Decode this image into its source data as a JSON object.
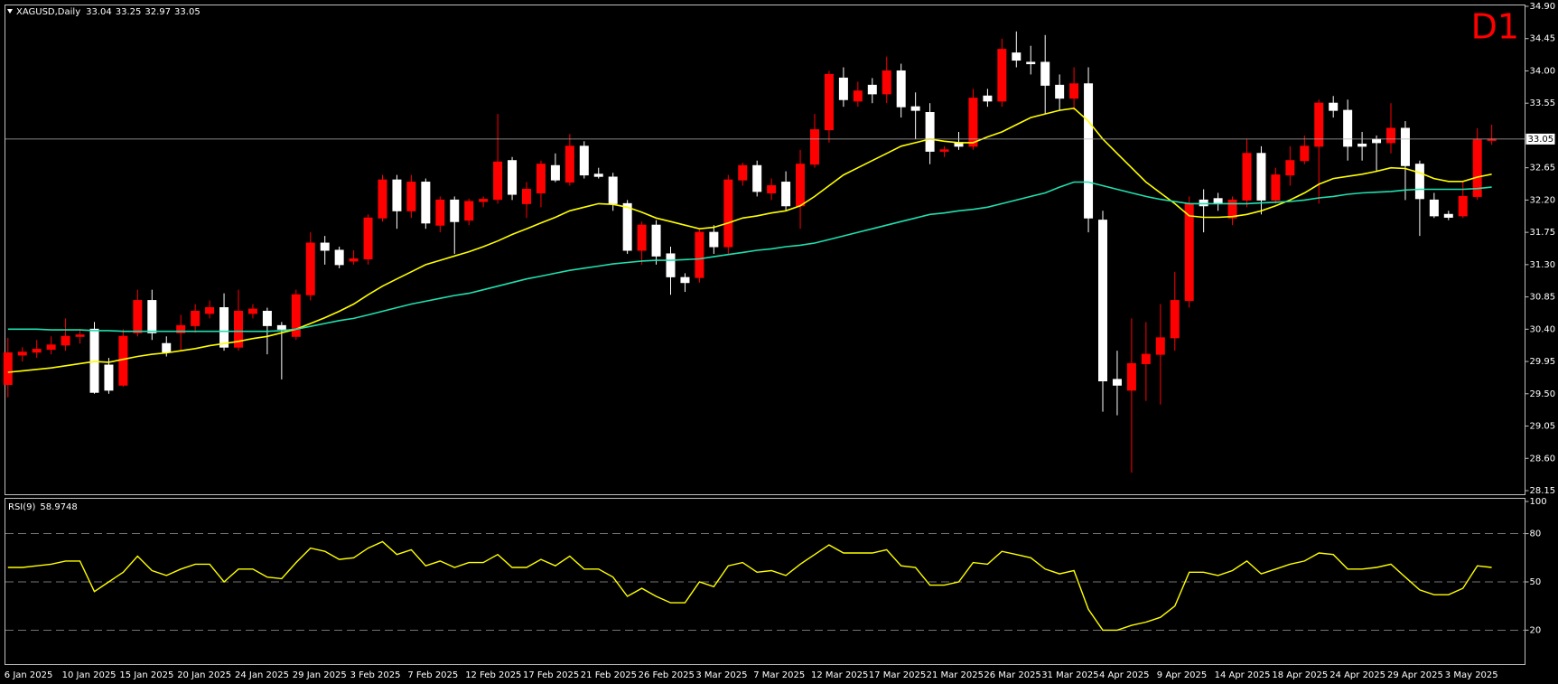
{
  "chart_data": [
    {
      "type": "candlestick",
      "title": "XAGUSD,Daily",
      "last_ohlc": [
        33.04,
        33.25,
        32.97,
        33.05
      ],
      "annotation": "D1",
      "up_color": "#ff0000",
      "down_color": "#ffffff",
      "current_price": 33.05,
      "grid": false,
      "ylim": [
        28.15,
        34.9
      ],
      "yticks": [
        {
          "value": 34.9,
          "label": "34.90"
        },
        34.45,
        {
          "value": 34.0,
          "label": "34.00"
        },
        33.55,
        32.65,
        {
          "value": 32.2,
          "label": "32.20"
        },
        31.75,
        {
          "value": 31.3,
          "label": "31.30"
        },
        30.85,
        {
          "value": 30.4,
          "label": "30.40"
        },
        29.95,
        {
          "value": 29.5,
          "label": "29.50"
        },
        29.05,
        {
          "value": 28.6,
          "label": "28.60"
        },
        28.15
      ],
      "open": [
        29.63,
        30.04,
        30.08,
        30.12,
        30.18,
        30.3,
        30.4,
        29.9,
        29.62,
        30.35,
        30.8,
        30.2,
        30.35,
        30.45,
        30.62,
        30.7,
        30.15,
        30.62,
        30.65,
        30.45,
        30.3,
        30.88,
        31.6,
        31.5,
        31.35,
        31.38,
        31.95,
        32.48,
        32.05,
        32.45,
        31.85,
        32.2,
        31.92,
        32.18,
        32.21,
        32.75,
        32.15,
        32.3,
        32.68,
        32.45,
        32.95,
        32.56,
        32.52,
        32.15,
        31.5,
        31.85,
        31.45,
        31.12,
        31.12,
        31.75,
        31.55,
        32.48,
        32.68,
        32.3,
        32.45,
        32.12,
        32.7,
        33.18,
        33.9,
        33.58,
        33.8,
        33.68,
        34.0,
        33.5,
        33.42,
        32.88,
        33.0,
        32.95,
        33.65,
        33.58,
        34.25,
        34.12,
        34.12,
        33.8,
        33.62,
        33.82,
        31.92,
        29.7,
        29.55,
        29.92,
        30.05,
        30.28,
        30.8,
        32.2,
        32.22,
        31.95,
        32.2,
        32.85,
        32.2,
        32.55,
        32.75,
        32.95,
        33.55,
        33.45,
        32.98,
        33.05,
        33.0,
        33.2,
        32.7,
        32.2,
        32.0,
        31.98,
        32.25,
        33.04
      ],
      "high": [
        30.28,
        30.15,
        30.25,
        30.3,
        30.55,
        30.4,
        30.5,
        30.0,
        30.4,
        30.95,
        30.95,
        30.3,
        30.6,
        30.75,
        30.8,
        30.9,
        30.95,
        30.75,
        30.7,
        30.5,
        30.95,
        31.75,
        31.7,
        31.55,
        31.5,
        32.0,
        32.55,
        32.55,
        32.55,
        32.5,
        32.25,
        32.25,
        32.22,
        32.25,
        33.4,
        32.8,
        32.45,
        32.75,
        32.85,
        33.12,
        33.02,
        32.65,
        32.58,
        32.2,
        31.9,
        31.92,
        31.55,
        31.18,
        31.8,
        31.85,
        32.55,
        32.72,
        32.75,
        32.5,
        32.6,
        32.9,
        33.4,
        34.0,
        34.05,
        33.85,
        33.9,
        34.2,
        34.1,
        33.7,
        33.55,
        32.95,
        33.15,
        33.75,
        33.75,
        34.45,
        34.55,
        34.35,
        34.5,
        33.95,
        34.05,
        34.05,
        32.05,
        30.1,
        30.55,
        30.5,
        30.75,
        31.2,
        32.25,
        32.35,
        32.3,
        32.25,
        33.05,
        32.95,
        32.65,
        32.95,
        33.1,
        33.6,
        33.65,
        33.6,
        33.15,
        33.1,
        33.55,
        33.3,
        32.75,
        32.3,
        32.05,
        32.45,
        33.2,
        33.25
      ],
      "low": [
        29.45,
        29.95,
        30.0,
        30.05,
        30.1,
        30.2,
        29.5,
        29.5,
        29.6,
        30.3,
        30.25,
        30.02,
        30.1,
        30.35,
        30.55,
        30.1,
        30.1,
        30.55,
        30.05,
        29.7,
        30.25,
        30.8,
        31.3,
        31.25,
        31.3,
        31.3,
        31.9,
        31.8,
        31.95,
        31.8,
        31.75,
        31.45,
        31.85,
        32.1,
        32.15,
        32.2,
        31.95,
        32.1,
        32.45,
        32.4,
        32.5,
        32.5,
        32.05,
        31.45,
        31.3,
        31.3,
        30.88,
        30.92,
        31.05,
        31.45,
        31.45,
        32.4,
        32.25,
        32.2,
        32.05,
        31.8,
        32.65,
        33.0,
        33.5,
        33.5,
        33.55,
        33.55,
        33.35,
        33.05,
        32.7,
        32.8,
        32.9,
        32.9,
        33.5,
        33.5,
        34.05,
        33.95,
        33.4,
        33.45,
        33.45,
        31.75,
        29.25,
        29.2,
        28.4,
        29.4,
        29.35,
        30.1,
        30.7,
        31.75,
        32.05,
        31.85,
        32.1,
        32.0,
        32.15,
        32.4,
        32.7,
        32.15,
        33.35,
        32.75,
        32.75,
        32.6,
        32.85,
        32.2,
        31.7,
        31.95,
        31.92,
        31.95,
        32.2,
        32.97
      ],
      "close": [
        30.07,
        30.08,
        30.12,
        30.18,
        30.3,
        30.32,
        29.52,
        29.55,
        30.3,
        30.8,
        30.35,
        30.08,
        30.45,
        30.65,
        30.7,
        30.15,
        30.65,
        30.68,
        30.45,
        30.4,
        30.88,
        31.6,
        31.5,
        31.3,
        31.38,
        31.95,
        32.48,
        32.05,
        32.45,
        31.88,
        32.2,
        31.9,
        32.18,
        32.21,
        32.73,
        32.28,
        32.35,
        32.7,
        32.48,
        32.95,
        32.55,
        32.53,
        32.15,
        31.5,
        31.85,
        31.42,
        31.13,
        31.05,
        31.75,
        31.55,
        32.48,
        32.68,
        32.32,
        32.4,
        32.12,
        32.7,
        33.18,
        33.95,
        33.6,
        33.72,
        33.68,
        34.0,
        33.5,
        33.45,
        32.88,
        32.9,
        32.95,
        33.62,
        33.58,
        34.3,
        34.15,
        34.1,
        33.8,
        33.62,
        33.82,
        31.95,
        29.68,
        29.62,
        29.92,
        30.05,
        30.28,
        30.8,
        32.15,
        32.12,
        32.15,
        32.2,
        32.85,
        32.2,
        32.55,
        32.75,
        32.95,
        33.55,
        33.45,
        32.95,
        32.95,
        33.0,
        33.2,
        32.68,
        32.22,
        31.98,
        31.96,
        32.25,
        33.04,
        33.05
      ],
      "lines": [
        {
          "color": "#ffff00",
          "values": [
            29.8,
            29.82,
            29.84,
            29.86,
            29.89,
            29.92,
            29.95,
            29.94,
            29.98,
            30.02,
            30.05,
            30.07,
            30.1,
            30.13,
            30.17,
            30.2,
            30.23,
            30.27,
            30.3,
            30.35,
            30.4,
            30.48,
            30.56,
            30.65,
            30.75,
            30.88,
            31.0,
            31.1,
            31.2,
            31.3,
            31.36,
            31.42,
            31.48,
            31.55,
            31.63,
            31.72,
            31.8,
            31.88,
            31.96,
            32.05,
            32.1,
            32.15,
            32.14,
            32.1,
            32.03,
            31.95,
            31.9,
            31.85,
            31.8,
            31.82,
            31.88,
            31.95,
            31.98,
            32.02,
            32.05,
            32.12,
            32.25,
            32.4,
            32.55,
            32.65,
            32.75,
            32.85,
            32.95,
            33.0,
            33.05,
            33.02,
            33.0,
            33.0,
            33.08,
            33.15,
            33.25,
            33.35,
            33.4,
            33.45,
            33.48,
            33.3,
            33.05,
            32.85,
            32.65,
            32.45,
            32.3,
            32.15,
            31.98,
            31.96,
            31.96,
            31.97,
            32.0,
            32.05,
            32.12,
            32.2,
            32.3,
            32.42,
            32.5,
            32.53,
            32.56,
            32.6,
            32.65,
            32.64,
            32.58,
            32.5,
            32.46,
            32.46,
            32.52,
            32.56
          ]
        },
        {
          "color": "#20e0b0",
          "values": [
            30.4,
            30.4,
            30.4,
            30.39,
            30.39,
            30.39,
            30.38,
            30.38,
            30.37,
            30.37,
            30.37,
            30.37,
            30.37,
            30.37,
            30.37,
            30.37,
            30.37,
            30.37,
            30.37,
            30.38,
            30.4,
            30.44,
            30.48,
            30.52,
            30.55,
            30.6,
            30.65,
            30.7,
            30.75,
            30.79,
            30.83,
            30.87,
            30.9,
            30.95,
            31.0,
            31.05,
            31.1,
            31.14,
            31.18,
            31.22,
            31.25,
            31.28,
            31.31,
            31.33,
            31.35,
            31.36,
            31.36,
            31.37,
            31.38,
            31.41,
            31.44,
            31.47,
            31.5,
            31.52,
            31.55,
            31.57,
            31.6,
            31.65,
            31.7,
            31.75,
            31.8,
            31.85,
            31.9,
            31.95,
            32.0,
            32.02,
            32.05,
            32.07,
            32.1,
            32.15,
            32.2,
            32.25,
            32.3,
            32.38,
            32.45,
            32.45,
            32.4,
            32.35,
            32.3,
            32.25,
            32.21,
            32.18,
            32.15,
            32.15,
            32.15,
            32.15,
            32.15,
            32.16,
            32.17,
            32.18,
            32.2,
            32.23,
            32.25,
            32.28,
            32.3,
            32.31,
            32.32,
            32.34,
            32.35,
            32.35,
            32.35,
            32.35,
            32.36,
            32.38
          ]
        }
      ]
    },
    {
      "type": "line",
      "title": "RSI(9)",
      "last_value": 58.9748,
      "color": "#ffff00",
      "ylim": [
        0,
        100
      ],
      "yticks": [
        100,
        80,
        50,
        20
      ],
      "levels": [
        80,
        50,
        20
      ],
      "categories": [
        "6 Jan 2025",
        null,
        null,
        null,
        "10 Jan 2025",
        null,
        null,
        null,
        "15 Jan 2025",
        null,
        null,
        null,
        "20 Jan 2025",
        null,
        null,
        null,
        "24 Jan 2025",
        null,
        null,
        null,
        "29 Jan 2025",
        null,
        null,
        null,
        "3 Feb 2025",
        null,
        null,
        null,
        "7 Feb 2025",
        null,
        null,
        null,
        "12 Feb 2025",
        null,
        null,
        null,
        "17 Feb 2025",
        null,
        null,
        null,
        "21 Feb 2025",
        null,
        null,
        null,
        "26 Feb 2025",
        null,
        null,
        null,
        "3 Mar 2025",
        null,
        null,
        null,
        "7 Mar 2025",
        null,
        null,
        null,
        "12 Mar 2025",
        null,
        null,
        null,
        "17 Mar 2025",
        null,
        null,
        null,
        "21 Mar 2025",
        null,
        null,
        null,
        "26 Mar 2025",
        null,
        null,
        null,
        "31 Mar 2025",
        null,
        null,
        null,
        "4 Apr 2025",
        null,
        null,
        null,
        "9 Apr 2025",
        null,
        null,
        null,
        "14 Apr 2025",
        null,
        null,
        null,
        "18 Apr 2025",
        null,
        null,
        null,
        "24 Apr 2025",
        null,
        null,
        null,
        "29 Apr 2025",
        null,
        null,
        null,
        "3 May 2025",
        null,
        null,
        null
      ],
      "values": [
        59,
        59,
        60,
        61,
        63,
        63,
        44,
        50,
        56,
        66,
        57,
        54,
        58,
        61,
        61,
        50,
        58,
        58,
        53,
        52,
        62,
        71,
        69,
        64,
        65,
        71,
        75,
        67,
        70,
        60,
        63,
        59,
        62,
        62,
        67,
        59,
        59,
        64,
        60,
        66,
        58,
        58,
        53,
        41,
        46,
        41,
        37,
        37,
        50,
        47,
        60,
        62,
        56,
        57,
        54,
        61,
        67,
        73,
        68,
        68,
        68,
        70,
        60,
        59,
        48,
        48,
        50,
        62,
        61,
        69,
        67,
        65,
        58,
        55,
        57,
        33,
        20,
        20,
        23,
        25,
        28,
        35,
        56,
        56,
        54,
        57,
        63,
        55,
        58,
        61,
        63,
        68,
        67,
        58,
        58,
        59,
        61,
        53,
        45,
        42,
        42,
        46,
        60,
        59
      ]
    }
  ]
}
